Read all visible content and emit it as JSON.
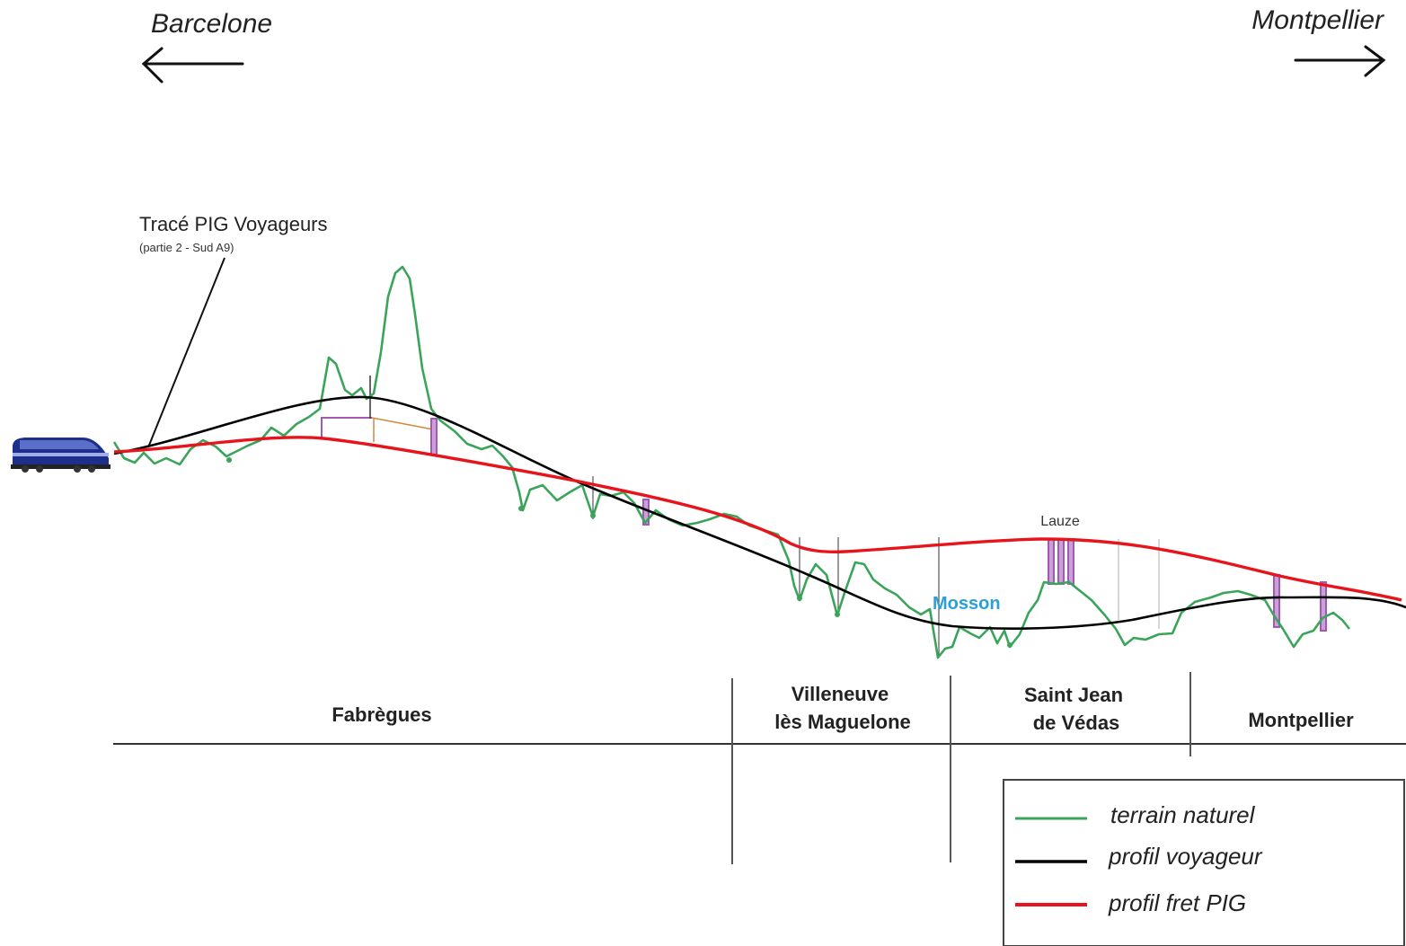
{
  "directions": {
    "left": "Barcelone",
    "right": "Montpellier"
  },
  "annotation": {
    "title": "Tracé PIG Voyageurs",
    "subtitle": "(partie 2 - Sud A9)"
  },
  "river": "Mosson",
  "local_label": "Lauze",
  "towns": [
    {
      "line1": "Fabrègues",
      "line2": ""
    },
    {
      "line1": "Villeneuve",
      "line2": "lès Maguelone"
    },
    {
      "line1": "Saint Jean",
      "line2": "de Védas"
    },
    {
      "line1": "Montpellier",
      "line2": ""
    }
  ],
  "legend": [
    {
      "label": "terrain naturel",
      "color": "#3aa55a"
    },
    {
      "label": "profil voyageur",
      "color": "#000000"
    },
    {
      "label": "profil fret PIG",
      "color": "#e8141b"
    }
  ],
  "colors": {
    "terrain": "#3aa55a",
    "voyageur": "#000000",
    "fret": "#e8141b",
    "structure": "#a05ab4",
    "river": "#2a9fd8"
  },
  "icons": {
    "train": "train-icon",
    "left_arrow": "arrow-left-icon",
    "right_arrow": "arrow-right-icon"
  }
}
